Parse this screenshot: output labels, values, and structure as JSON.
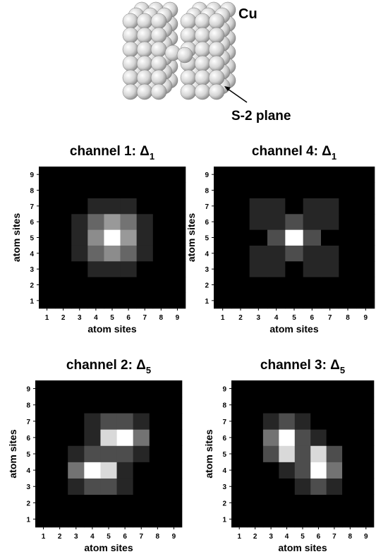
{
  "illustration": {
    "label_top": "Cu",
    "label_plane": "S-2 plane"
  },
  "chart_data": [
    {
      "type": "heatmap",
      "title": "channel 1: Δ",
      "title_sub": "1",
      "xlabel": "atom sites",
      "ylabel": "atom sites",
      "x": [
        1,
        2,
        3,
        4,
        5,
        6,
        7,
        8,
        9
      ],
      "y": [
        1,
        2,
        3,
        4,
        5,
        6,
        7,
        8,
        9
      ],
      "xlim": [
        0.5,
        9.5
      ],
      "ylim": [
        0.5,
        9.5
      ],
      "xticks": [
        1,
        2,
        3,
        4,
        5,
        6,
        7,
        8,
        9
      ],
      "yticks": [
        1,
        2,
        3,
        4,
        5,
        6,
        7,
        8,
        9
      ],
      "z": [
        [
          0,
          0,
          0,
          0,
          0,
          0,
          0,
          0,
          0
        ],
        [
          0,
          0,
          0,
          0,
          0,
          0,
          0,
          0,
          0
        ],
        [
          0,
          0,
          0,
          0.15,
          0.15,
          0.15,
          0,
          0,
          0
        ],
        [
          0,
          0,
          0.15,
          0.4,
          0.55,
          0.4,
          0.15,
          0,
          0
        ],
        [
          0,
          0,
          0.15,
          0.55,
          1,
          0.6,
          0.15,
          0,
          0
        ],
        [
          0,
          0,
          0.15,
          0.4,
          0.6,
          0.45,
          0.15,
          0,
          0
        ],
        [
          0,
          0,
          0,
          0.15,
          0.15,
          0.15,
          0,
          0,
          0
        ],
        [
          0,
          0,
          0,
          0,
          0,
          0,
          0,
          0,
          0
        ],
        [
          0,
          0,
          0,
          0,
          0,
          0,
          0,
          0,
          0
        ]
      ]
    },
    {
      "type": "heatmap",
      "title": "channel 4: Δ",
      "title_sub": "1",
      "xlabel": "atom sites",
      "ylabel": "atom sites",
      "x": [
        1,
        2,
        3,
        4,
        5,
        6,
        7,
        8,
        9
      ],
      "y": [
        1,
        2,
        3,
        4,
        5,
        6,
        7,
        8,
        9
      ],
      "xlim": [
        0.5,
        9.5
      ],
      "ylim": [
        0.5,
        9.5
      ],
      "xticks": [
        1,
        2,
        3,
        4,
        5,
        6,
        7,
        8,
        9
      ],
      "yticks": [
        1,
        2,
        3,
        4,
        5,
        6,
        7,
        8,
        9
      ],
      "z": [
        [
          0,
          0,
          0,
          0,
          0,
          0,
          0,
          0,
          0
        ],
        [
          0,
          0,
          0,
          0,
          0,
          0,
          0,
          0,
          0
        ],
        [
          0,
          0,
          0.15,
          0.15,
          0,
          0.15,
          0.15,
          0,
          0
        ],
        [
          0,
          0,
          0.15,
          0.15,
          0.3,
          0.15,
          0.15,
          0,
          0
        ],
        [
          0,
          0,
          0,
          0.3,
          1,
          0.3,
          0,
          0,
          0
        ],
        [
          0,
          0,
          0.15,
          0.15,
          0.3,
          0.15,
          0.15,
          0,
          0
        ],
        [
          0,
          0,
          0.15,
          0.15,
          0,
          0.15,
          0.15,
          0,
          0
        ],
        [
          0,
          0,
          0,
          0,
          0,
          0,
          0,
          0,
          0
        ],
        [
          0,
          0,
          0,
          0,
          0,
          0,
          0,
          0,
          0
        ]
      ]
    },
    {
      "type": "heatmap",
      "title": "channel 2: Δ",
      "title_sub": "5",
      "xlabel": "atom sites",
      "ylabel": "atom sites",
      "x": [
        1,
        2,
        3,
        4,
        5,
        6,
        7,
        8,
        9
      ],
      "y": [
        1,
        2,
        3,
        4,
        5,
        6,
        7,
        8,
        9
      ],
      "xlim": [
        0.5,
        9.5
      ],
      "ylim": [
        0.5,
        9.5
      ],
      "xticks": [
        1,
        2,
        3,
        4,
        5,
        6,
        7,
        8,
        9
      ],
      "yticks": [
        1,
        2,
        3,
        4,
        5,
        6,
        7,
        8,
        9
      ],
      "z": [
        [
          0,
          0,
          0,
          0,
          0,
          0,
          0,
          0,
          0
        ],
        [
          0,
          0,
          0,
          0,
          0,
          0,
          0,
          0,
          0
        ],
        [
          0,
          0,
          0.15,
          0.3,
          0.3,
          0.15,
          0,
          0,
          0
        ],
        [
          0,
          0,
          0.45,
          1,
          0.85,
          0.15,
          0,
          0,
          0
        ],
        [
          0,
          0,
          0.15,
          0.3,
          0.3,
          0.3,
          0.15,
          0,
          0
        ],
        [
          0,
          0,
          0,
          0.15,
          0.85,
          1,
          0.45,
          0,
          0
        ],
        [
          0,
          0,
          0,
          0.15,
          0.3,
          0.3,
          0.15,
          0,
          0
        ],
        [
          0,
          0,
          0,
          0,
          0,
          0,
          0,
          0,
          0
        ],
        [
          0,
          0,
          0,
          0,
          0,
          0,
          0,
          0,
          0
        ]
      ]
    },
    {
      "type": "heatmap",
      "title": "channel 3: Δ",
      "title_sub": "5",
      "xlabel": "atom sites",
      "ylabel": "atom sites",
      "x": [
        1,
        2,
        3,
        4,
        5,
        6,
        7,
        8,
        9
      ],
      "y": [
        1,
        2,
        3,
        4,
        5,
        6,
        7,
        8,
        9
      ],
      "xlim": [
        0.5,
        9.5
      ],
      "ylim": [
        0.5,
        9.5
      ],
      "xticks": [
        1,
        2,
        3,
        4,
        5,
        6,
        7,
        8,
        9
      ],
      "yticks": [
        1,
        2,
        3,
        4,
        5,
        6,
        7,
        8,
        9
      ],
      "z": [
        [
          0,
          0,
          0,
          0,
          0,
          0,
          0,
          0,
          0
        ],
        [
          0,
          0,
          0,
          0,
          0,
          0,
          0,
          0,
          0
        ],
        [
          0,
          0,
          0,
          0,
          0.15,
          0.3,
          0.15,
          0,
          0
        ],
        [
          0,
          0,
          0,
          0.15,
          0.3,
          1,
          0.45,
          0,
          0
        ],
        [
          0,
          0,
          0.3,
          0.85,
          0.3,
          0.85,
          0.3,
          0,
          0
        ],
        [
          0,
          0,
          0.45,
          1,
          0.3,
          0.15,
          0,
          0,
          0
        ],
        [
          0,
          0,
          0.15,
          0.3,
          0.15,
          0,
          0,
          0,
          0
        ],
        [
          0,
          0,
          0,
          0,
          0,
          0,
          0,
          0,
          0
        ],
        [
          0,
          0,
          0,
          0,
          0,
          0,
          0,
          0,
          0
        ]
      ]
    }
  ]
}
